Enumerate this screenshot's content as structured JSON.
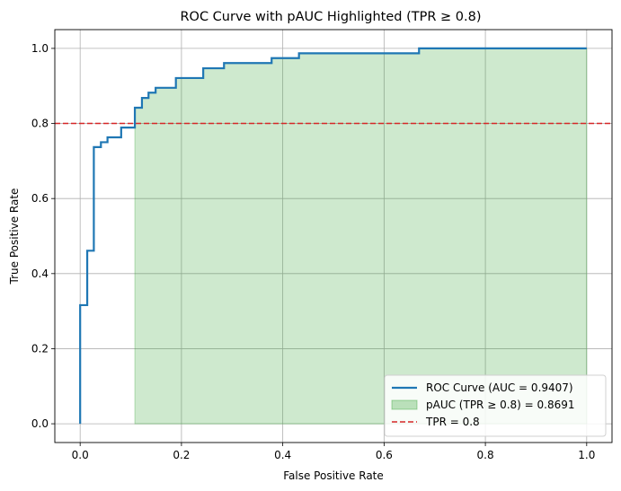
{
  "chart_data": {
    "type": "line",
    "title": "ROC Curve with pAUC Highlighted (TPR ≥ 0.8)",
    "xlabel": "False Positive Rate",
    "ylabel": "True Positive Rate",
    "xlim": [
      -0.05,
      1.05
    ],
    "ylim": [
      -0.05,
      1.05
    ],
    "xticks": [
      "0.0",
      "0.2",
      "0.4",
      "0.6",
      "0.8",
      "1.0"
    ],
    "yticks": [
      "0.0",
      "0.2",
      "0.4",
      "0.6",
      "0.8",
      "1.0"
    ],
    "grid": true,
    "legend_position": "lower-right",
    "series": [
      {
        "name": "ROC Curve (AUC = 0.9407)",
        "kind": "step-line",
        "color": "#1f77b4",
        "points": [
          [
            0.0,
            0.0
          ],
          [
            0.0,
            0.316
          ],
          [
            0.014,
            0.316
          ],
          [
            0.014,
            0.461
          ],
          [
            0.027,
            0.461
          ],
          [
            0.027,
            0.737
          ],
          [
            0.041,
            0.737
          ],
          [
            0.041,
            0.75
          ],
          [
            0.054,
            0.75
          ],
          [
            0.054,
            0.763
          ],
          [
            0.081,
            0.763
          ],
          [
            0.081,
            0.789
          ],
          [
            0.108,
            0.789
          ],
          [
            0.108,
            0.842
          ],
          [
            0.122,
            0.842
          ],
          [
            0.122,
            0.868
          ],
          [
            0.135,
            0.868
          ],
          [
            0.135,
            0.882
          ],
          [
            0.149,
            0.882
          ],
          [
            0.149,
            0.895
          ],
          [
            0.189,
            0.895
          ],
          [
            0.189,
            0.921
          ],
          [
            0.243,
            0.921
          ],
          [
            0.243,
            0.947
          ],
          [
            0.284,
            0.947
          ],
          [
            0.284,
            0.961
          ],
          [
            0.378,
            0.961
          ],
          [
            0.378,
            0.974
          ],
          [
            0.432,
            0.974
          ],
          [
            0.432,
            0.987
          ],
          [
            0.669,
            0.987
          ],
          [
            0.669,
            1.0
          ],
          [
            1.0,
            1.0
          ]
        ]
      },
      {
        "name": "pAUC (TPR ≥ 0.8) = 0.8691",
        "kind": "fill",
        "color": "#2ca02c",
        "x_start": 0.108,
        "x_end": 1.0
      },
      {
        "name": "TPR = 0.8",
        "kind": "hline",
        "color": "#d62728",
        "y": 0.8
      }
    ]
  }
}
